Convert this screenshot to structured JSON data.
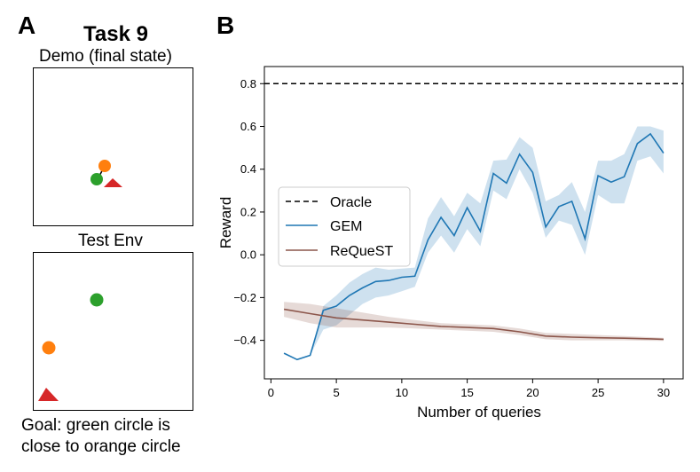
{
  "panel_a": {
    "letter": "A",
    "task_title": "Task 9",
    "demo_title": "Demo (final state)",
    "test_title": "Test Env",
    "goal_line1": "Goal: green circle is",
    "goal_line2": "close to orange circle",
    "colors": {
      "green": "#2ca02c",
      "orange": "#ff7f0e",
      "red": "#d62728"
    }
  },
  "panel_b": {
    "letter": "B"
  },
  "chart_data": {
    "type": "line",
    "xlabel": "Number of queries",
    "ylabel": "Reward",
    "xlim": [
      -0.5,
      31.5
    ],
    "ylim": [
      -0.58,
      0.88
    ],
    "xticks": [
      0,
      5,
      10,
      15,
      20,
      25,
      30
    ],
    "yticks": [
      -0.4,
      -0.2,
      0.0,
      0.2,
      0.4,
      0.6,
      0.8
    ],
    "ytick_labels": [
      "−0.4",
      "−0.2",
      "0.0",
      "0.2",
      "0.4",
      "0.6",
      "0.8"
    ],
    "oracle": {
      "name": "Oracle",
      "value": 0.8,
      "color": "#000000"
    },
    "series": [
      {
        "name": "GEM",
        "color": "#1f77b4",
        "x": [
          1,
          2,
          3,
          4,
          5,
          6,
          7,
          8,
          9,
          10,
          11,
          12,
          13,
          14,
          15,
          16,
          17,
          18,
          19,
          20,
          21,
          22,
          23,
          24,
          25,
          26,
          27,
          28,
          29,
          30
        ],
        "values": [
          -0.46,
          -0.49,
          -0.47,
          -0.26,
          -0.24,
          -0.19,
          -0.155,
          -0.125,
          -0.12,
          -0.105,
          -0.1,
          0.07,
          0.175,
          0.09,
          0.22,
          0.11,
          0.38,
          0.335,
          0.47,
          0.385,
          0.13,
          0.225,
          0.25,
          0.075,
          0.37,
          0.34,
          0.365,
          0.52,
          0.565,
          0.475
        ],
        "upper": [
          -0.46,
          -0.49,
          -0.47,
          -0.24,
          -0.19,
          -0.13,
          -0.09,
          -0.06,
          -0.07,
          -0.065,
          -0.06,
          0.17,
          0.27,
          0.18,
          0.29,
          0.24,
          0.44,
          0.445,
          0.55,
          0.5,
          0.25,
          0.28,
          0.34,
          0.2,
          0.44,
          0.44,
          0.47,
          0.6,
          0.6,
          0.58
        ],
        "lower": [
          -0.46,
          -0.49,
          -0.47,
          -0.35,
          -0.33,
          -0.28,
          -0.23,
          -0.2,
          -0.19,
          -0.17,
          -0.15,
          0.01,
          0.09,
          0.01,
          0.12,
          0.04,
          0.3,
          0.26,
          0.4,
          0.29,
          0.08,
          0.16,
          0.14,
          0.0,
          0.28,
          0.24,
          0.24,
          0.44,
          0.46,
          0.38
        ]
      },
      {
        "name": "ReQueST",
        "color": "#8c564b",
        "x": [
          1,
          3,
          5,
          7,
          9,
          11,
          13,
          15,
          17,
          19,
          21,
          23,
          25,
          27,
          29,
          30
        ],
        "values": [
          -0.255,
          -0.275,
          -0.295,
          -0.305,
          -0.315,
          -0.325,
          -0.335,
          -0.34,
          -0.345,
          -0.36,
          -0.38,
          -0.385,
          -0.388,
          -0.39,
          -0.393,
          -0.395
        ],
        "upper": [
          -0.22,
          -0.23,
          -0.25,
          -0.27,
          -0.29,
          -0.305,
          -0.32,
          -0.325,
          -0.33,
          -0.345,
          -0.365,
          -0.37,
          -0.375,
          -0.38,
          -0.385,
          -0.388
        ],
        "lower": [
          -0.29,
          -0.32,
          -0.34,
          -0.34,
          -0.34,
          -0.345,
          -0.35,
          -0.355,
          -0.36,
          -0.375,
          -0.395,
          -0.4,
          -0.4,
          -0.4,
          -0.402,
          -0.403
        ]
      }
    ],
    "legend": {
      "position": "middle-left",
      "entries": [
        "Oracle",
        "GEM",
        "ReQueST"
      ]
    }
  }
}
